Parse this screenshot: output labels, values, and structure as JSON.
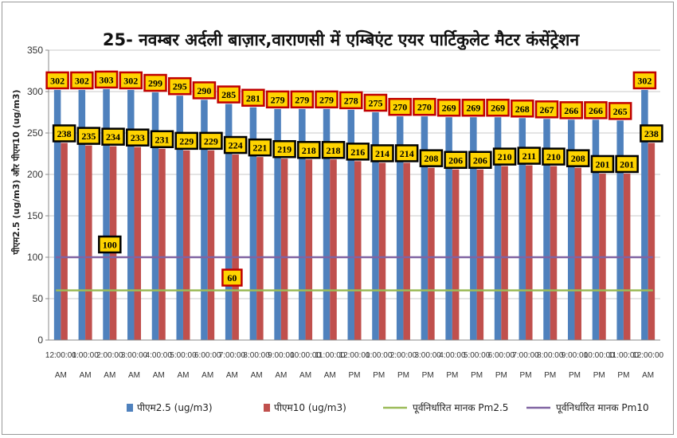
{
  "chart_data": {
    "type": "bar",
    "title": "25- नवम्बर अर्दली बाज़ार,वाराणसी में एम्बिएंट एयर पार्टिकुलेट मैटर कंसेंट्रेशन",
    "xlabel": "",
    "ylabel": "पीएम2.5 (ug/m3) और पीएम10 (ug/m3)",
    "ylim": [
      0,
      350
    ],
    "yticks": [
      0,
      50,
      100,
      150,
      200,
      250,
      300,
      350
    ],
    "grid": true,
    "legend_position": "bottom",
    "categories": [
      [
        "12:00:00",
        "AM"
      ],
      [
        "1:00:00",
        "AM"
      ],
      [
        "2:00:00",
        "AM"
      ],
      [
        "3:00:00",
        "AM"
      ],
      [
        "4:00:00",
        "AM"
      ],
      [
        "5:00:00",
        "AM"
      ],
      [
        "6:00:00",
        "AM"
      ],
      [
        "7:00:00",
        "AM"
      ],
      [
        "8:00:00",
        "AM"
      ],
      [
        "9:00:00",
        "AM"
      ],
      [
        "10:00:00",
        "AM"
      ],
      [
        "11:00:00",
        "AM"
      ],
      [
        "12:00:00",
        "PM"
      ],
      [
        "1:00:00",
        "PM"
      ],
      [
        "2:00:00",
        "PM"
      ],
      [
        "3:00:00",
        "PM"
      ],
      [
        "4:00:00",
        "PM"
      ],
      [
        "5:00:00",
        "PM"
      ],
      [
        "6:00:00",
        "PM"
      ],
      [
        "7:00:00",
        "PM"
      ],
      [
        "8:00:00",
        "PM"
      ],
      [
        "9:00:00",
        "PM"
      ],
      [
        "10:00:00",
        "PM"
      ],
      [
        "11:00:00",
        "PM"
      ],
      [
        "12:00:00",
        "AM"
      ]
    ],
    "series": [
      {
        "name": "पीएम2.5 (ug/m3)",
        "kind": "bar",
        "color": "#4f81bd",
        "label_style": "yellow-red",
        "values": [
          302,
          302,
          303,
          302,
          299,
          295,
          290,
          285,
          281,
          279,
          279,
          279,
          278,
          275,
          270,
          270,
          269,
          269,
          269,
          268,
          267,
          266,
          266,
          265,
          302
        ]
      },
      {
        "name": "पीएम10  (ug/m3)",
        "kind": "bar",
        "color": "#c0504d",
        "label_style": "yellow-black",
        "values": [
          238,
          235,
          234,
          233,
          231,
          229,
          229,
          224,
          221,
          219,
          218,
          218,
          216,
          214,
          214,
          208,
          206,
          206,
          210,
          211,
          210,
          208,
          201,
          201,
          238
        ]
      },
      {
        "name": "पूर्वनिर्धारित मानक Pm2.5",
        "kind": "line",
        "color": "#9bbb59",
        "value": 60,
        "label": "60",
        "label_index": 7,
        "label_style": "yellow-red"
      },
      {
        "name": "पूर्वनिर्धारित मानक Pm10",
        "kind": "line",
        "color": "#8064a2",
        "value": 100,
        "label": "100",
        "label_index": 2,
        "label_style": "yellow-black"
      }
    ]
  }
}
